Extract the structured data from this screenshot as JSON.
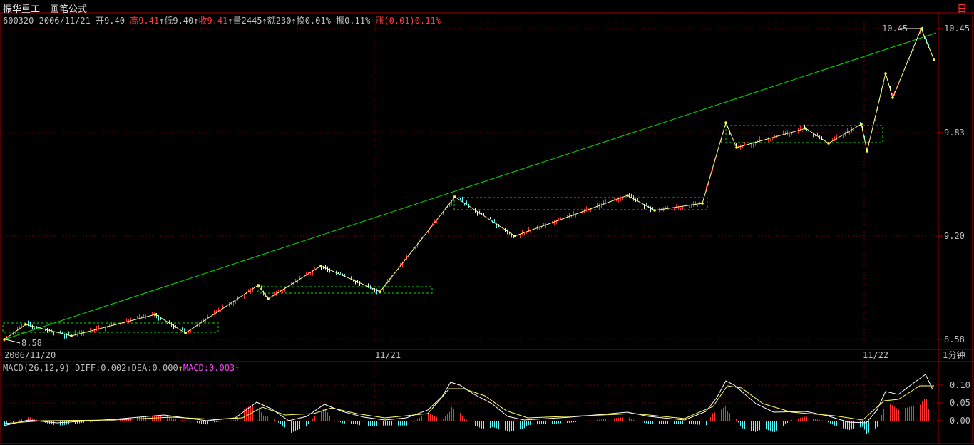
{
  "header": {
    "stock_name": "振华重工",
    "formula": "画笔公式",
    "corner": "日"
  },
  "info": {
    "code": "600320",
    "date": "2006/11/21",
    "open": "开9.40",
    "high": "高9.41",
    "low": "低9.40",
    "close": "收9.41",
    "volume": "量2445",
    "amount": "额230",
    "turnover": "换0.01%",
    "amplitude": "振0.11%",
    "change": "涨(0.01)0.11%"
  },
  "price_axis": {
    "labels": [
      "10.45",
      "9.83",
      "9.20",
      "8.58"
    ],
    "high_marker": "10.45",
    "low_marker": "8.58"
  },
  "time_axis": {
    "labels": [
      "2006/11/20",
      "11/21",
      "11/22"
    ],
    "period": "1分钟"
  },
  "macd": {
    "name": "MACD(26,12,9)",
    "diff": "DIFF:0.002",
    "dea": "DEA:0.000",
    "macd": "MACD:0.003",
    "labels": [
      "0.10",
      "0.05",
      "0.00"
    ]
  },
  "colors": {
    "background": "#000000",
    "frame": "#a00000",
    "up": "#ff3030",
    "down": "#54ffff",
    "zigzag": "#ffff90",
    "trendline": "#00e000",
    "box": "#00e000"
  }
}
